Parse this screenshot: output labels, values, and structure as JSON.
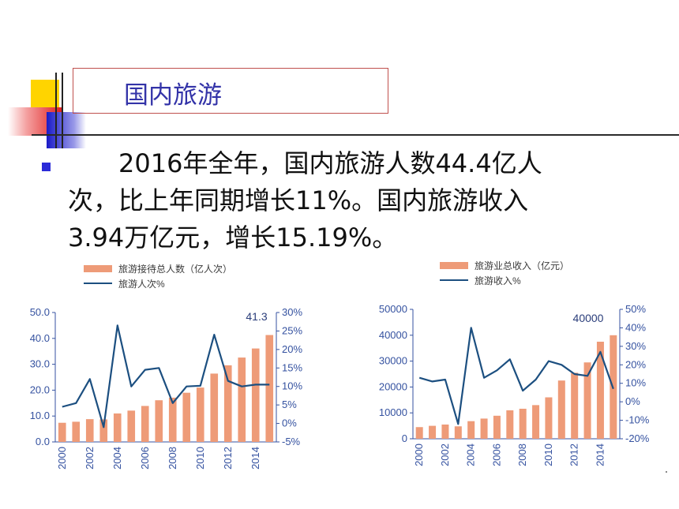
{
  "slide": {
    "title": "国内旅游",
    "paragraph": [
      "2016年全年，国内旅游人数44.4亿人",
      "次，比上年同期增长11%。国内旅游收入",
      "3.94万亿元，增长15.19%。"
    ]
  },
  "colors": {
    "bar": "#ee9b78",
    "line": "#1c4f80",
    "axis": "#3552a0",
    "title": "#3333a8"
  },
  "chart_data": [
    {
      "type": "bar",
      "legend": [
        "旅游接待总人数（亿人次）",
        "旅游人次%"
      ],
      "x": [
        2000,
        2001,
        2002,
        2003,
        2004,
        2005,
        2006,
        2007,
        2008,
        2009,
        2010,
        2011,
        2012,
        2013,
        2014,
        2015
      ],
      "x_tick_labels": [
        "2000",
        "2002",
        "2004",
        "2006",
        "2008",
        "2010",
        "2012",
        "2014"
      ],
      "series": [
        {
          "name": "旅游接待总人数（亿人次）",
          "axis": "left",
          "values": [
            7.4,
            7.8,
            8.8,
            8.7,
            11.0,
            12.1,
            13.9,
            16.1,
            17.1,
            19.0,
            21.0,
            26.4,
            29.6,
            32.6,
            36.1,
            41.3
          ]
        },
        {
          "name": "旅游人次%",
          "axis": "right",
          "values": [
            4.5,
            5.5,
            12.0,
            -1.0,
            26.5,
            10.0,
            14.5,
            15.0,
            5.5,
            10.0,
            10.2,
            24.0,
            11.5,
            10.0,
            10.5,
            10.5
          ]
        }
      ],
      "ylim_left": [
        0,
        50
      ],
      "ylim_right": [
        -5,
        30
      ],
      "y_ticks_left": [
        "0.0",
        "10.0",
        "20.0",
        "30.0",
        "40.0",
        "50.0"
      ],
      "y_ticks_right": [
        "-5%",
        "0%",
        "5%",
        "10%",
        "15%",
        "20%",
        "25%",
        "30%"
      ],
      "annotation": "41.3"
    },
    {
      "type": "bar",
      "legend": [
        "旅游业总收入（亿元）",
        "旅游收入%"
      ],
      "x": [
        2000,
        2001,
        2002,
        2003,
        2004,
        2005,
        2006,
        2007,
        2008,
        2009,
        2010,
        2011,
        2012,
        2013,
        2014,
        2015
      ],
      "x_tick_labels": [
        "2000",
        "2002",
        "2004",
        "2006",
        "2008",
        "2010",
        "2012",
        "2014"
      ],
      "series": [
        {
          "name": "旅游业总收入（亿元）",
          "axis": "left",
          "values": [
            4500,
            5000,
            5500,
            4800,
            6800,
            7800,
            8900,
            11000,
            11600,
            13000,
            16000,
            22500,
            25500,
            29500,
            37500,
            40000
          ]
        },
        {
          "name": "旅游收入%",
          "axis": "right",
          "values": [
            13,
            11,
            12,
            -12,
            40,
            13,
            17,
            23,
            6,
            12,
            22,
            20,
            15,
            14,
            27,
            7
          ]
        }
      ],
      "ylim_left": [
        0,
        50000
      ],
      "ylim_right": [
        -20,
        50
      ],
      "y_ticks_left": [
        "0",
        "10000",
        "20000",
        "30000",
        "40000",
        "50000"
      ],
      "y_ticks_right": [
        "-20%",
        "-10%",
        "0%",
        "10%",
        "20%",
        "30%",
        "40%",
        "50%"
      ],
      "annotation": "40000"
    }
  ]
}
